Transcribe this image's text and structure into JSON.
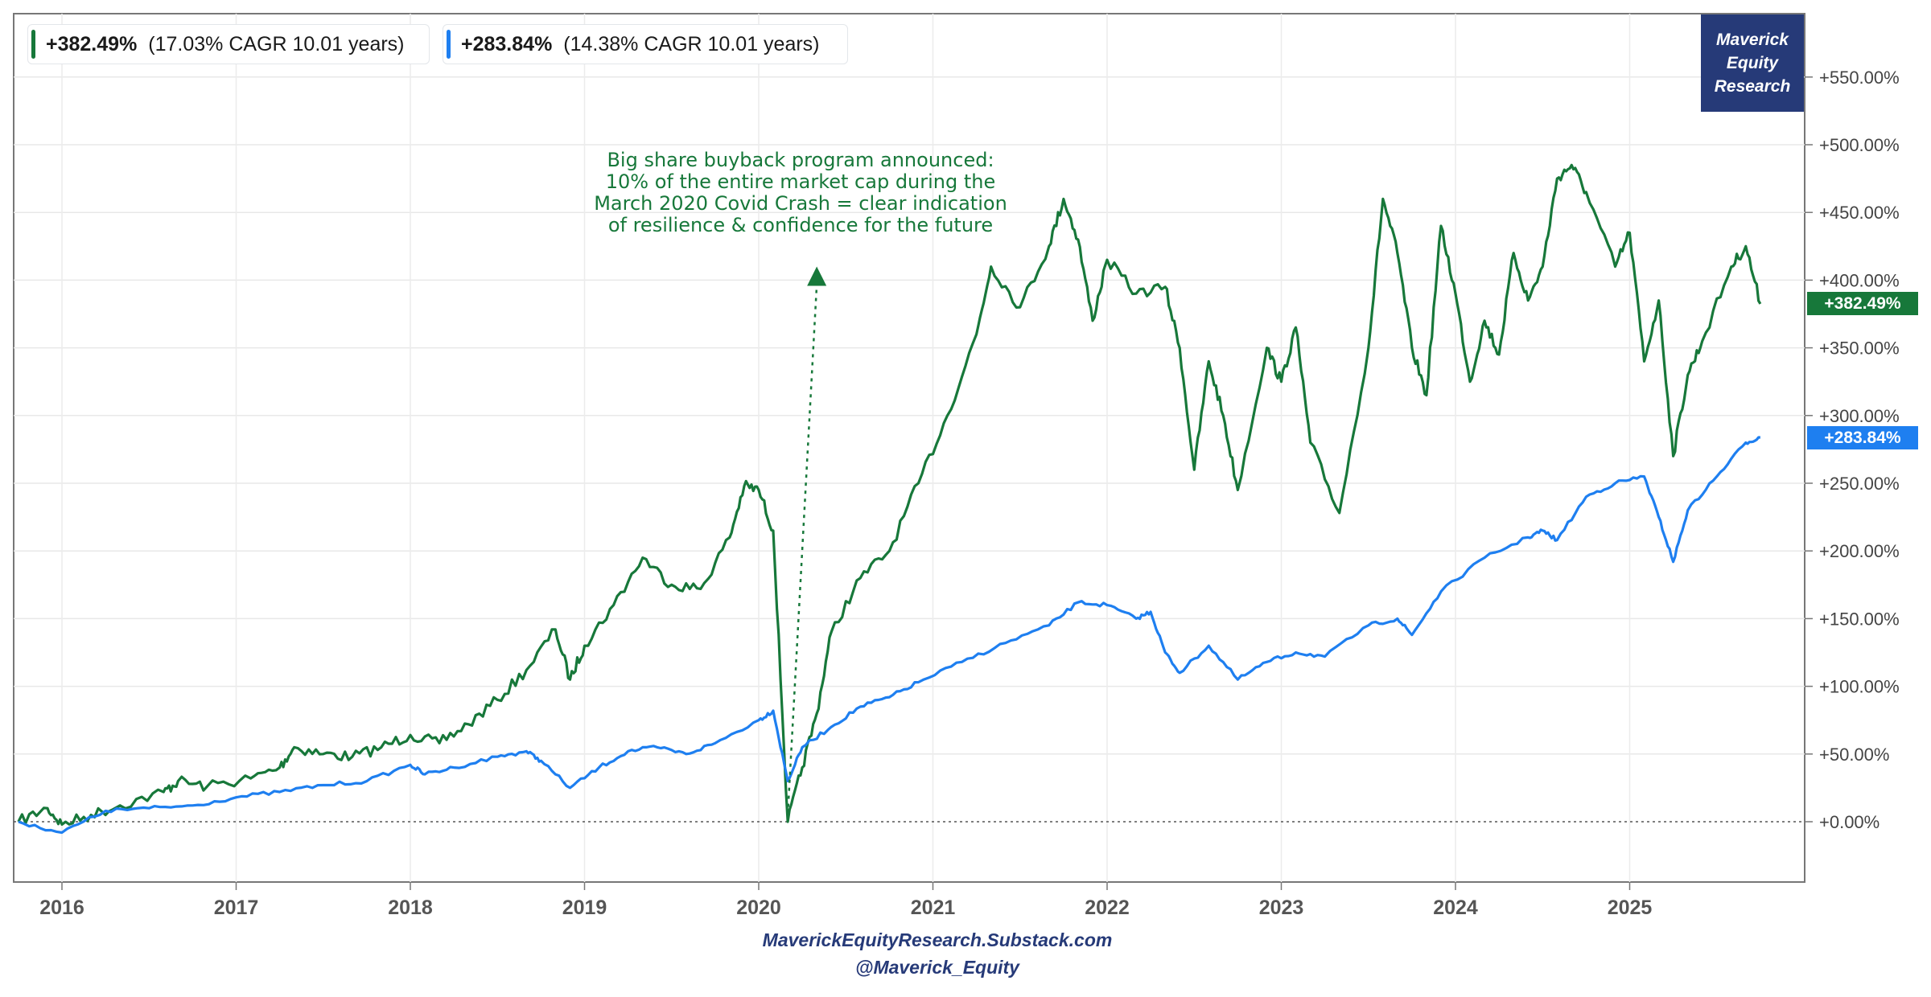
{
  "chart_data": {
    "type": "line",
    "x_start": "2015-10",
    "x_end": "2025-10",
    "x_ticks": [
      "2016",
      "2017",
      "2018",
      "2019",
      "2020",
      "2021",
      "2022",
      "2023",
      "2024",
      "2025"
    ],
    "y_unit": "%",
    "ylim": [
      -45,
      600
    ],
    "y_ticks": [
      "+0.00%",
      "+50.00%",
      "+100.00%",
      "+150.00%",
      "+200.00%",
      "+250.00%",
      "+300.00%",
      "+350.00%",
      "+400.00%",
      "+450.00%",
      "+500.00%",
      "+550.00%"
    ],
    "y_tick_values": [
      0,
      50,
      100,
      150,
      200,
      250,
      300,
      350,
      400,
      450,
      500,
      550
    ],
    "grid": true,
    "baseline": 0,
    "series": [
      {
        "color": "#17783a",
        "last_label": "+382.49%",
        "points": [
          [
            "2015-10",
            0
          ],
          [
            "2015-12",
            10
          ],
          [
            "2016-01",
            -2
          ],
          [
            "2016-03",
            5
          ],
          [
            "2016-05",
            12
          ],
          [
            "2016-08",
            22
          ],
          [
            "2016-09",
            30
          ],
          [
            "2016-11",
            26
          ],
          [
            "2017-02",
            32
          ],
          [
            "2017-04",
            40
          ],
          [
            "2017-05",
            55
          ],
          [
            "2017-07",
            50
          ],
          [
            "2017-09",
            48
          ],
          [
            "2017-11",
            55
          ],
          [
            "2018-01",
            64
          ],
          [
            "2018-03",
            58
          ],
          [
            "2018-05",
            72
          ],
          [
            "2018-07",
            90
          ],
          [
            "2018-09",
            112
          ],
          [
            "2018-11",
            142
          ],
          [
            "2018-12",
            105
          ],
          [
            "2019-01",
            130
          ],
          [
            "2019-03",
            160
          ],
          [
            "2019-05",
            195
          ],
          [
            "2019-07",
            175
          ],
          [
            "2019-09",
            172
          ],
          [
            "2019-11",
            210
          ],
          [
            "2019-12",
            248
          ],
          [
            "2020-01",
            245
          ],
          [
            "2020-02",
            215
          ],
          [
            "2020-03",
            0
          ],
          [
            "2020-04",
            40
          ],
          [
            "2020-05",
            80
          ],
          [
            "2020-06",
            140
          ],
          [
            "2020-08",
            180
          ],
          [
            "2020-10",
            200
          ],
          [
            "2020-12",
            250
          ],
          [
            "2021-02",
            300
          ],
          [
            "2021-04",
            360
          ],
          [
            "2021-05",
            410
          ],
          [
            "2021-07",
            380
          ],
          [
            "2021-09",
            425
          ],
          [
            "2021-10",
            460
          ],
          [
            "2021-11",
            430
          ],
          [
            "2021-12",
            370
          ],
          [
            "2022-01",
            415
          ],
          [
            "2022-03",
            390
          ],
          [
            "2022-05",
            395
          ],
          [
            "2022-06",
            350
          ],
          [
            "2022-07",
            260
          ],
          [
            "2022-08",
            340
          ],
          [
            "2022-09",
            300
          ],
          [
            "2022-10",
            245
          ],
          [
            "2022-12",
            350
          ],
          [
            "2023-01",
            325
          ],
          [
            "2023-02",
            365
          ],
          [
            "2023-03",
            280
          ],
          [
            "2023-05",
            228
          ],
          [
            "2023-07",
            350
          ],
          [
            "2023-08",
            460
          ],
          [
            "2023-09",
            420
          ],
          [
            "2023-10",
            350
          ],
          [
            "2023-11",
            315
          ],
          [
            "2023-12",
            440
          ],
          [
            "2024-01",
            390
          ],
          [
            "2024-02",
            325
          ],
          [
            "2024-03",
            370
          ],
          [
            "2024-04",
            345
          ],
          [
            "2024-05",
            420
          ],
          [
            "2024-06",
            385
          ],
          [
            "2024-07",
            410
          ],
          [
            "2024-08",
            475
          ],
          [
            "2024-09",
            485
          ],
          [
            "2024-10",
            465
          ],
          [
            "2024-12",
            410
          ],
          [
            "2025-01",
            435
          ],
          [
            "2025-02",
            340
          ],
          [
            "2025-03",
            385
          ],
          [
            "2025-04",
            270
          ],
          [
            "2025-05",
            330
          ],
          [
            "2025-06",
            355
          ],
          [
            "2025-08",
            410
          ],
          [
            "2025-09",
            425
          ],
          [
            "2025-10",
            382.49
          ]
        ]
      },
      {
        "color": "#1e7ff0",
        "last_label": "+283.84%",
        "points": [
          [
            "2015-10",
            0
          ],
          [
            "2016-01",
            -8
          ],
          [
            "2016-04",
            8
          ],
          [
            "2016-07",
            10
          ],
          [
            "2016-10",
            12
          ],
          [
            "2017-01",
            18
          ],
          [
            "2017-04",
            22
          ],
          [
            "2017-07",
            27
          ],
          [
            "2017-10",
            30
          ],
          [
            "2018-01",
            42
          ],
          [
            "2018-02",
            35
          ],
          [
            "2018-04",
            40
          ],
          [
            "2018-07",
            48
          ],
          [
            "2018-09",
            52
          ],
          [
            "2018-10",
            45
          ],
          [
            "2018-12",
            25
          ],
          [
            "2019-02",
            40
          ],
          [
            "2019-04",
            52
          ],
          [
            "2019-06",
            55
          ],
          [
            "2019-08",
            50
          ],
          [
            "2019-10",
            58
          ],
          [
            "2020-01",
            75
          ],
          [
            "2020-02",
            82
          ],
          [
            "2020-03",
            30
          ],
          [
            "2020-04",
            55
          ],
          [
            "2020-06",
            70
          ],
          [
            "2020-08",
            85
          ],
          [
            "2020-10",
            92
          ],
          [
            "2020-12",
            103
          ],
          [
            "2021-03",
            118
          ],
          [
            "2021-06",
            132
          ],
          [
            "2021-09",
            145
          ],
          [
            "2021-11",
            162
          ],
          [
            "2022-01",
            160
          ],
          [
            "2022-03",
            150
          ],
          [
            "2022-04",
            155
          ],
          [
            "2022-05",
            125
          ],
          [
            "2022-06",
            110
          ],
          [
            "2022-08",
            130
          ],
          [
            "2022-10",
            105
          ],
          [
            "2022-12",
            118
          ],
          [
            "2023-02",
            125
          ],
          [
            "2023-04",
            122
          ],
          [
            "2023-07",
            145
          ],
          [
            "2023-09",
            150
          ],
          [
            "2023-10",
            138
          ],
          [
            "2023-12",
            170
          ],
          [
            "2024-03",
            195
          ],
          [
            "2024-06",
            210
          ],
          [
            "2024-07",
            215
          ],
          [
            "2024-08",
            208
          ],
          [
            "2024-10",
            240
          ],
          [
            "2024-12",
            250
          ],
          [
            "2025-02",
            255
          ],
          [
            "2025-03",
            225
          ],
          [
            "2025-04",
            192
          ],
          [
            "2025-05",
            230
          ],
          [
            "2025-07",
            255
          ],
          [
            "2025-09",
            280
          ],
          [
            "2025-10",
            283.84
          ]
        ]
      }
    ],
    "legend": [
      {
        "pct": "+382.49%",
        "desc": "(17.03% CAGR 10.01 years)",
        "color": "#17783a"
      },
      {
        "pct": "+283.84%",
        "desc": "(14.38% CAGR 10.01 years)",
        "color": "#1e7ff0"
      }
    ],
    "annotation": {
      "lines": [
        "Big share buyback program announced:",
        "10% of the entire market cap during the",
        "March 2020 Covid Crash = clear indication",
        "of resilience & confidence for the future"
      ],
      "color": "#17783a",
      "arrow_from": [
        "2020-03",
        5
      ],
      "arrow_to": [
        "2020-05",
        410
      ]
    }
  },
  "branding": {
    "box_lines": [
      "Maverick",
      "Equity",
      "Research"
    ],
    "box_color": "#263a78"
  },
  "footer": {
    "line1": "MaverickEquityResearch.Substack.com",
    "line2": "@Maverick_Equity"
  }
}
